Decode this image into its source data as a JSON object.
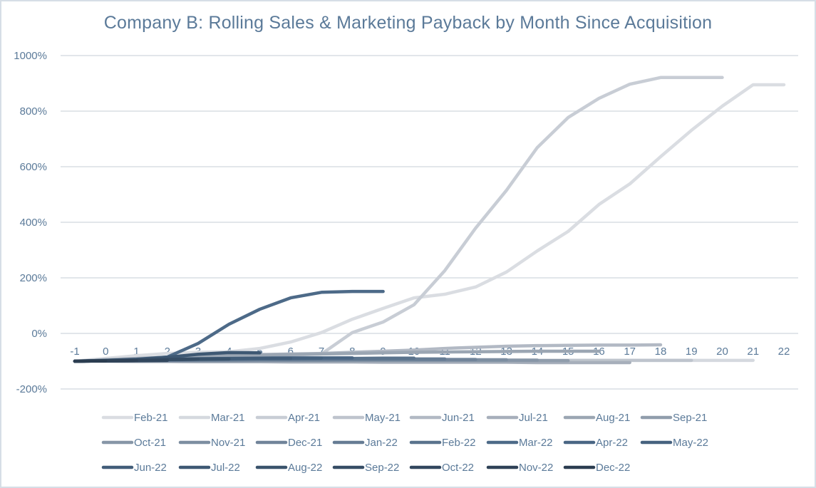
{
  "chart_data": {
    "type": "line",
    "title": "Company B: Rolling Sales & Marketing Payback by Month Since Acquisition",
    "xlabel": "",
    "ylabel": "",
    "x": [
      -1,
      0,
      1,
      2,
      3,
      4,
      5,
      6,
      7,
      8,
      9,
      10,
      11,
      12,
      13,
      14,
      15,
      16,
      17,
      18,
      19,
      20,
      21,
      22
    ],
    "x_tick_labels": [
      "-1",
      "0",
      "1",
      "2",
      "3",
      "4",
      "5",
      "6",
      "7",
      "8",
      "9",
      "10",
      "11",
      "12",
      "13",
      "14",
      "15",
      "16",
      "17",
      "18",
      "19",
      "20",
      "21",
      "22"
    ],
    "ylim": [
      -200,
      1000
    ],
    "y_ticks": [
      -200,
      0,
      200,
      400,
      600,
      800,
      1000
    ],
    "y_tick_labels": [
      "-200%",
      "0%",
      "200%",
      "400%",
      "600%",
      "800%",
      "1000%"
    ],
    "grid": true,
    "legend_position": "bottom",
    "series": [
      {
        "name": "Feb-21",
        "color": "#DADDE2",
        "values": [
          -100,
          -90,
          -80,
          -72,
          -68,
          -66,
          -54,
          -31,
          3,
          51,
          90,
          128,
          141,
          167,
          221,
          297,
          367,
          464,
          538,
          636,
          731,
          818,
          895,
          895
        ]
      },
      {
        "name": "Mar-21",
        "color": "#D5D9DF",
        "values": [
          -100,
          -97,
          -95,
          -95,
          -96,
          -97,
          -97,
          -97,
          -97,
          -97,
          -97,
          -97,
          -97,
          -97,
          -97,
          -97,
          -97,
          -97,
          -97,
          -97,
          -97,
          -97,
          -97
        ]
      },
      {
        "name": "Apr-21",
        "color": "#C8CDD5",
        "values": [
          -100,
          -95,
          -90,
          -86,
          -84,
          -82,
          -80,
          -78,
          -74,
          3,
          41,
          103,
          226,
          379,
          515,
          669,
          777,
          846,
          897,
          921,
          921,
          921
        ]
      },
      {
        "name": "May-21",
        "color": "#BEC4CD",
        "values": [
          -100,
          -99,
          -99,
          -99,
          -98,
          -98,
          -98,
          -98,
          -98,
          -97,
          -97,
          -97,
          -97,
          -97,
          -97,
          -97,
          -97,
          -97,
          -97,
          -97,
          -97
        ]
      },
      {
        "name": "Jun-21",
        "color": "#B2B9C4",
        "values": [
          -100,
          -95,
          -90,
          -86,
          -82,
          -78,
          -76,
          -74,
          -72,
          -68,
          -64,
          -60,
          -54,
          -50,
          -46,
          -44,
          -43,
          -42,
          -42,
          -41
        ]
      },
      {
        "name": "Jul-21",
        "color": "#A7AFBB",
        "values": [
          -100,
          -100,
          -101,
          -101,
          -102,
          -102,
          -102,
          -103,
          -103,
          -103,
          -104,
          -104,
          -104,
          -104,
          -104,
          -105,
          -105,
          -105,
          -105
        ]
      },
      {
        "name": "Aug-21",
        "color": "#9BA6B3",
        "values": [
          -100,
          -96,
          -92,
          -88,
          -84,
          -80,
          -78,
          -76,
          -74,
          -72,
          -70,
          -68,
          -67,
          -66,
          -65,
          -64,
          -64,
          -64
        ]
      },
      {
        "name": "Sep-21",
        "color": "#909DAC",
        "values": [
          -100,
          -99,
          -99,
          -99,
          -98,
          -98,
          -98,
          -98,
          -98,
          -98,
          -98,
          -98,
          -98,
          -98,
          -98,
          -98,
          -98
        ]
      },
      {
        "name": "Oct-21",
        "color": "#8796A7",
        "values": [
          -100,
          -99,
          -99,
          -98,
          -98,
          -98,
          -97,
          -97,
          -97,
          -97,
          -96,
          -96,
          -96,
          -96,
          -96,
          -96
        ]
      },
      {
        "name": "Nov-21",
        "color": "#7D8EA1",
        "values": [
          -100,
          -99,
          -98,
          -98,
          -97,
          -97,
          -96,
          -96,
          -96,
          -95,
          -95,
          -95,
          -95,
          -95,
          -95
        ]
      },
      {
        "name": "Dec-21",
        "color": "#71849A",
        "values": [
          -100,
          -99,
          -98,
          -97,
          -96,
          -96,
          -95,
          -95,
          -95,
          -94,
          -94,
          -94,
          -94,
          -94
        ]
      },
      {
        "name": "Jan-22",
        "color": "#667C94",
        "values": [
          -100,
          -98,
          -97,
          -96,
          -95,
          -94,
          -93,
          -93,
          -92,
          -92,
          -92,
          -92,
          -92
        ]
      },
      {
        "name": "Feb-22",
        "color": "#5A738D",
        "values": [
          -100,
          -98,
          -96,
          -94,
          -93,
          -92,
          -91,
          -90,
          -90,
          -90,
          -89,
          -89
        ]
      },
      {
        "name": "Mar-22",
        "color": "#4D6A88",
        "values": [
          -100,
          -97,
          -93,
          -85,
          -36,
          33,
          87,
          128,
          148,
          151,
          151
        ]
      },
      {
        "name": "Apr-22",
        "color": "#4A6684",
        "values": [
          -100,
          -98,
          -96,
          -93,
          -91,
          -90,
          -89,
          -88,
          -88,
          -88
        ]
      },
      {
        "name": "May-22",
        "color": "#46627F",
        "values": [
          -100,
          -98,
          -96,
          -94,
          -92,
          -91,
          -90,
          -90,
          -89
        ]
      },
      {
        "name": "Jun-22",
        "color": "#425D79",
        "values": [
          -100,
          -98,
          -96,
          -94,
          -92,
          -91,
          -90,
          -90
        ]
      },
      {
        "name": "Jul-22",
        "color": "#3E5873",
        "values": [
          -100,
          -97,
          -94,
          -86,
          -75,
          -69,
          -70
        ]
      },
      {
        "name": "Aug-22",
        "color": "#3A536C",
        "values": [
          -100,
          -98,
          -96,
          -94,
          -93,
          -92
        ]
      },
      {
        "name": "Sep-22",
        "color": "#364D65",
        "values": [
          -100,
          -98,
          -96,
          -94,
          -93
        ]
      },
      {
        "name": "Oct-22",
        "color": "#32475E",
        "values": [
          -100,
          -99,
          -98,
          -97
        ]
      },
      {
        "name": "Nov-22",
        "color": "#2F4257",
        "values": [
          -100,
          -99,
          -98
        ]
      },
      {
        "name": "Dec-22",
        "color": "#2B3D50",
        "values": [
          -100,
          -99
        ]
      }
    ]
  }
}
